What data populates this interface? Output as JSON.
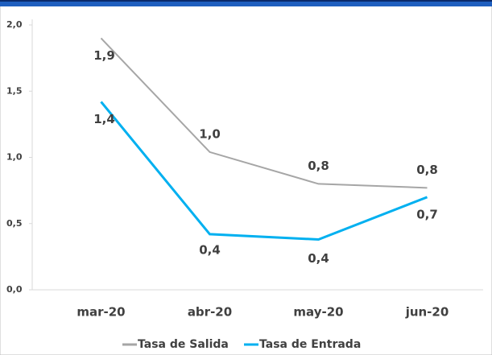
{
  "chart_data": {
    "type": "line",
    "categories": [
      "mar-20",
      "abr-20",
      "may-20",
      "jun-20"
    ],
    "series": [
      {
        "name": "Tasa de Salida",
        "color": "#a6a6a6",
        "values": [
          1.9,
          1.04,
          0.8,
          0.77
        ],
        "value_labels": [
          "1,9",
          "1,0",
          "0,8",
          "0,8"
        ]
      },
      {
        "name": "Tasa de Entrada",
        "color": "#00b0f0",
        "values": [
          1.42,
          0.42,
          0.38,
          0.7
        ],
        "value_labels": [
          "1,4",
          "0,4",
          "0,4",
          "0,7"
        ]
      }
    ],
    "ylim": [
      0,
      2.0
    ],
    "yticks": [
      {
        "value": 0,
        "label": "0,0"
      },
      {
        "value": 0.5,
        "label": "0,5"
      },
      {
        "value": 1.0,
        "label": "1,0"
      },
      {
        "value": 1.5,
        "label": "1,5"
      },
      {
        "value": 2.0,
        "label": "2,0"
      }
    ],
    "grid": false,
    "legend": "bottom"
  }
}
